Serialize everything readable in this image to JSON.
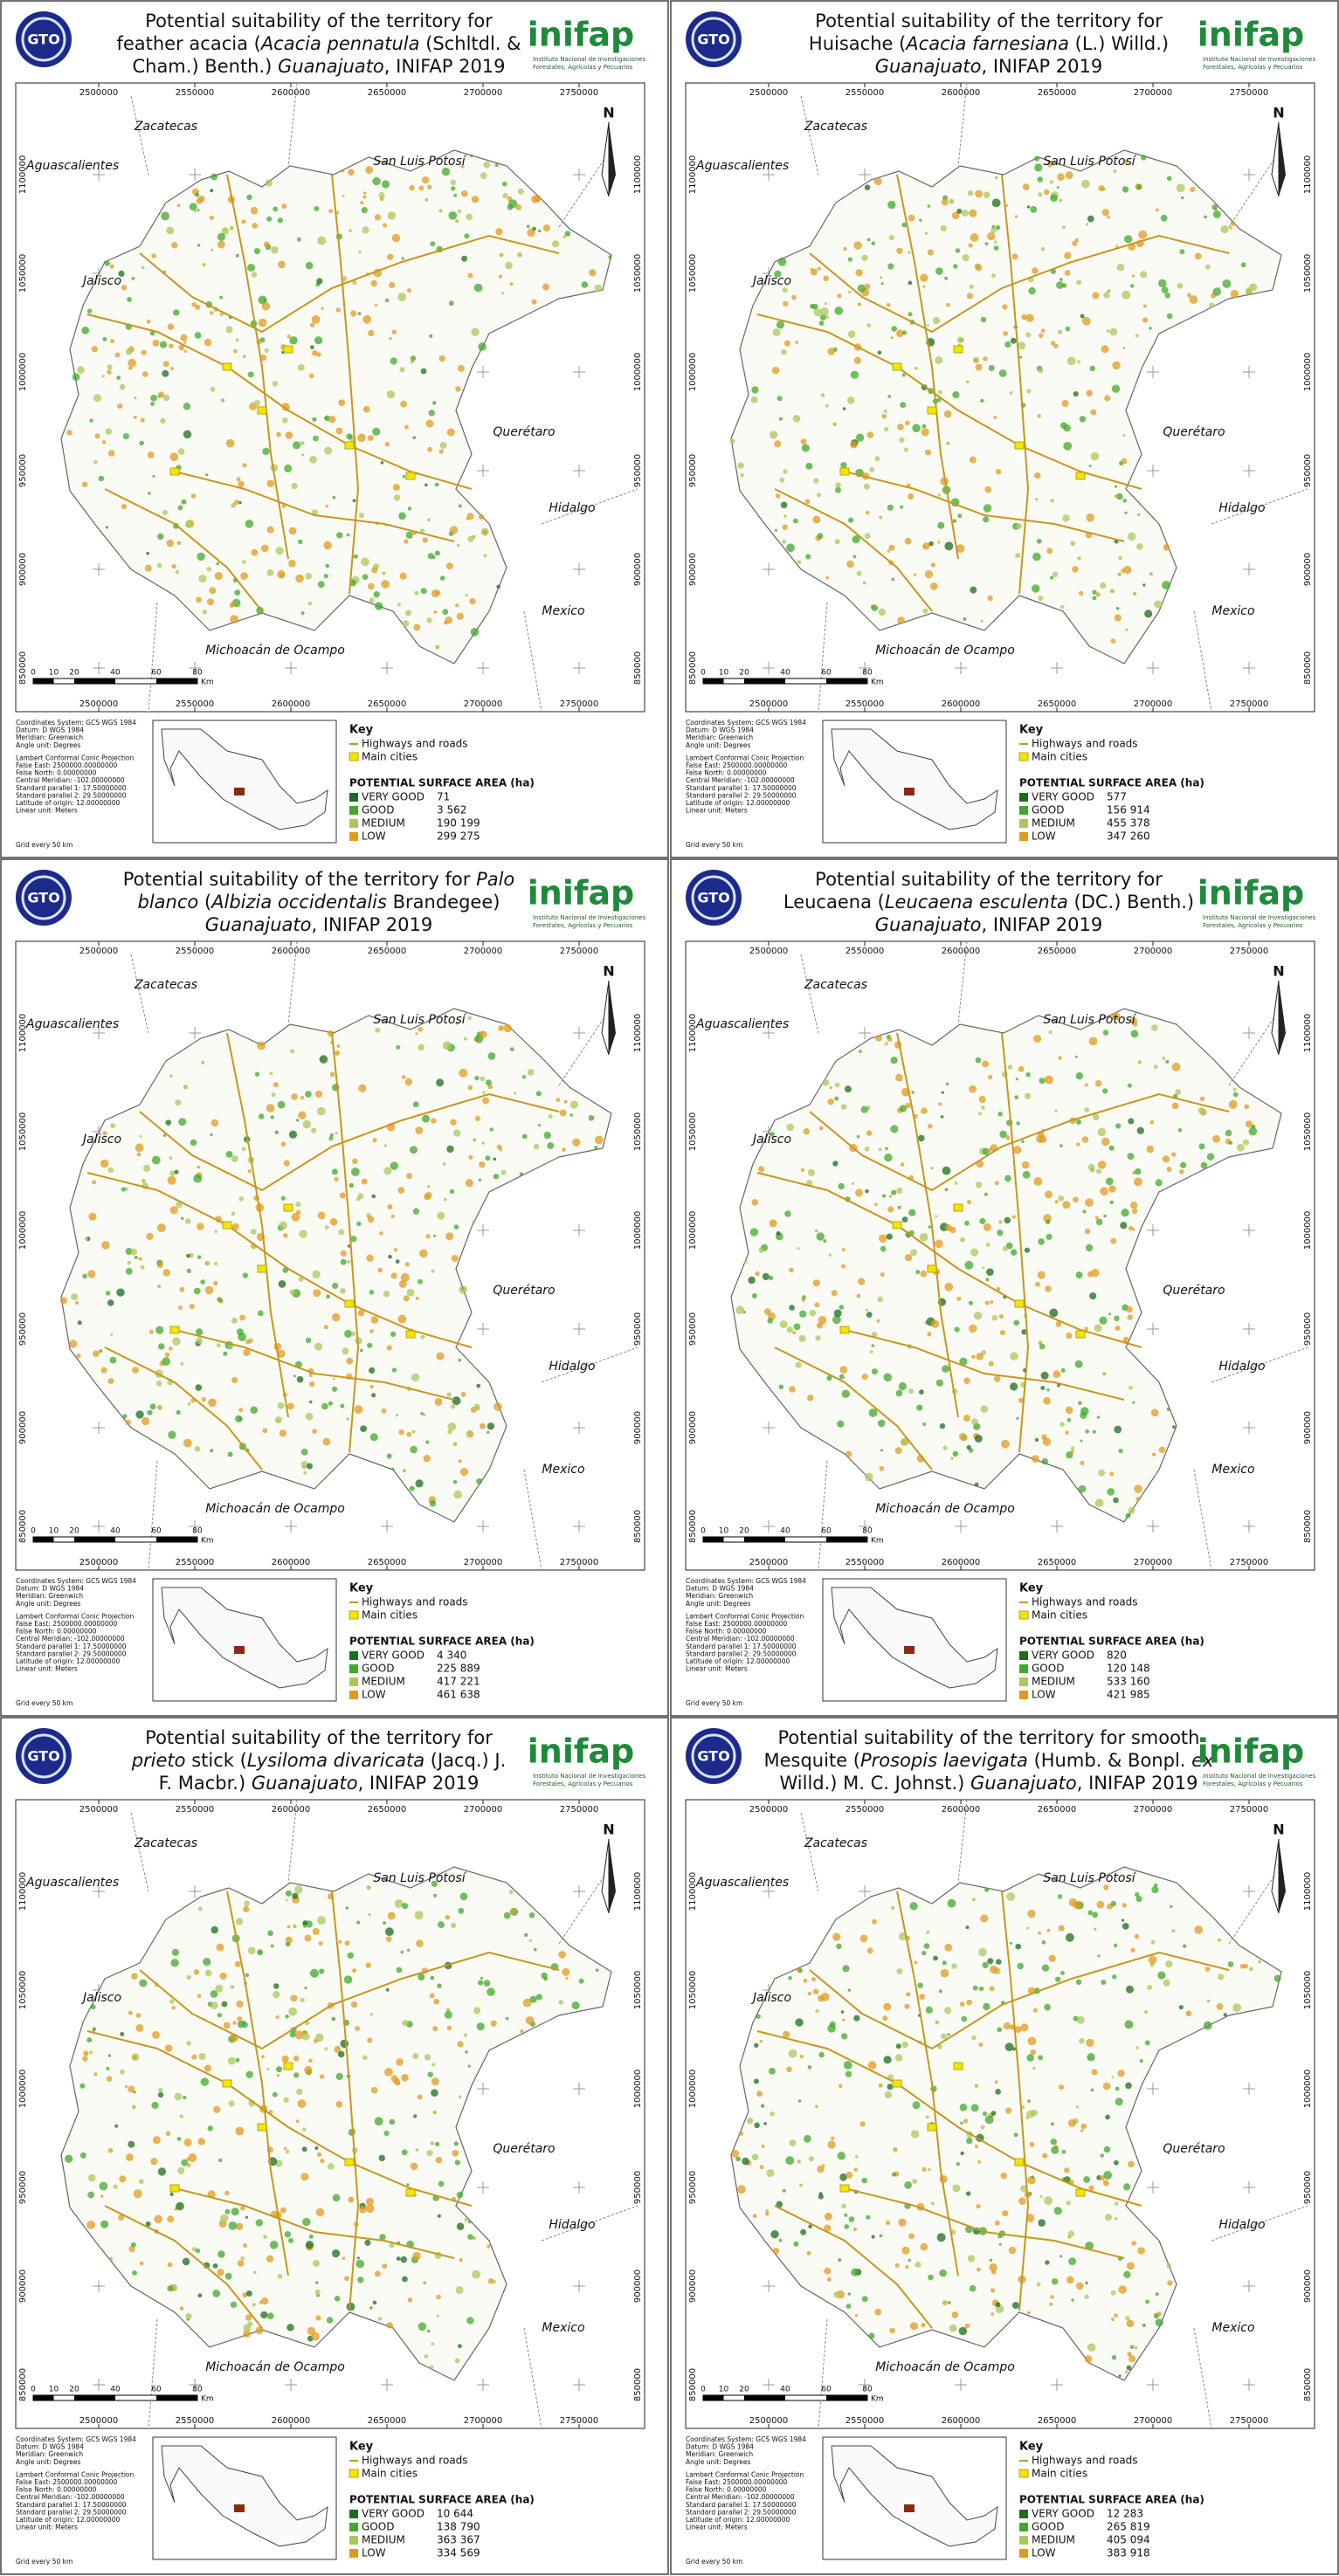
{
  "common": {
    "gto_logo": "GTO",
    "inifap_logo": "inifap",
    "inifap_caption": [
      "Instituto Nacional de Investigaciones",
      "Forestales, Agrícolas y Pecuarios"
    ],
    "xticks": [
      2500000,
      2550000,
      2600000,
      2650000,
      2700000,
      2750000
    ],
    "yticks": [
      1100000,
      1050000,
      1000000,
      950000,
      900000,
      850000
    ],
    "places": [
      "Zacatecas",
      "San Luis Potosí",
      "Aguascalientes",
      "Jalisco",
      "Querétaro",
      "Hidalgo",
      "Mexico",
      "Michoacán de Ocampo"
    ],
    "scale": [
      0,
      10,
      20,
      40,
      60,
      80
    ],
    "scale_unit": "Km",
    "north": "N",
    "projection": [
      "Coordinates System: GCS WGS 1984",
      "Datum: D WGS 1984",
      "Meridian: Greenwich",
      "Angle unit: Degrees",
      "Lambert Conformal Conic Projection",
      "False East: 2500000.00000000",
      "False North: 0.00000000",
      "Central Meridian: -102.00000000",
      "Standard parallel 1: 17.50000000",
      "Standard parallel 2: 29.50000000",
      "Latitude of origin: 12.00000000",
      "Linear unit: Meters"
    ],
    "grid_note": "Grid every 50 km",
    "key_title": "Key",
    "key_items": [
      "Highways and roads",
      "Main cities"
    ],
    "surface_title": "POTENTIAL SURFACE AREA (ha)",
    "classes": [
      {
        "label": "VERY GOOD",
        "color": "#1b6e1b"
      },
      {
        "label": "GOOD",
        "color": "#3fa92a"
      },
      {
        "label": "MEDIUM",
        "color": "#a9c85a"
      },
      {
        "label": "LOW",
        "color": "#e39a1c"
      }
    ]
  },
  "panels": [
    {
      "title": [
        [
          {
            "text": "Potential suitability of the territory for"
          }
        ],
        [
          {
            "text": "feather acacia ("
          },
          {
            "text": "Acacia pennatula",
            "italic": true
          },
          {
            "text": " (Schltdl. &"
          }
        ],
        [
          {
            "text": "Cham.) Benth.) "
          },
          {
            "text": "Guanajuato",
            "italic": true
          },
          {
            "text": ", INIFAP 2019"
          }
        ]
      ],
      "surface": [
        "71",
        "3 562",
        "190 199",
        "299 275"
      ]
    },
    {
      "title": [
        [
          {
            "text": "Potential suitability of the territory for"
          }
        ],
        [
          {
            "text": "Huisache ("
          },
          {
            "text": "Acacia farnesiana",
            "italic": true
          },
          {
            "text": " (L.) Willd.)"
          }
        ],
        [
          {
            "text": "Guanajuato",
            "italic": true
          },
          {
            "text": ", INIFAP 2019"
          }
        ]
      ],
      "surface": [
        "577",
        "156 914",
        "455 378",
        "347 260"
      ]
    },
    {
      "title": [
        [
          {
            "text": "Potential suitability of the territory for "
          },
          {
            "text": "Palo",
            "italic": true
          }
        ],
        [
          {
            "text": "blanco",
            "italic": true
          },
          {
            "text": " ("
          },
          {
            "text": "Albizia occidentalis",
            "italic": true
          },
          {
            "text": " Brandegee)"
          }
        ],
        [
          {
            "text": "Guanajuato",
            "italic": true
          },
          {
            "text": ", INIFAP 2019"
          }
        ]
      ],
      "surface": [
        "4 340",
        "225 889",
        "417 221",
        "461 638"
      ]
    },
    {
      "title": [
        [
          {
            "text": "Potential suitability of the territory for"
          }
        ],
        [
          {
            "text": "Leucaena ("
          },
          {
            "text": "Leucaena esculenta",
            "italic": true
          },
          {
            "text": " (DC.) Benth.)"
          }
        ],
        [
          {
            "text": "Guanajuato",
            "italic": true
          },
          {
            "text": ", INIFAP 2019"
          }
        ]
      ],
      "surface": [
        "820",
        "120 148",
        "533 160",
        "421 985"
      ]
    },
    {
      "title": [
        [
          {
            "text": "Potential suitability of the territory for"
          }
        ],
        [
          {
            "text": "prieto",
            "italic": true
          },
          {
            "text": " stick ("
          },
          {
            "text": "Lysiloma divaricata",
            "italic": true
          },
          {
            "text": " (Jacq.) J."
          }
        ],
        [
          {
            "text": "F. Macbr.) "
          },
          {
            "text": "Guanajuato",
            "italic": true
          },
          {
            "text": ", INIFAP 2019"
          }
        ]
      ],
      "surface": [
        "10 644",
        "138 790",
        "363 367",
        "334 569"
      ]
    },
    {
      "title": [
        [
          {
            "text": "Potential suitability of the territory for smooth"
          }
        ],
        [
          {
            "text": "Mesquite ("
          },
          {
            "text": "Prosopis laevigata",
            "italic": true
          },
          {
            "text": " (Humb. & Bonpl. "
          },
          {
            "text": "ex",
            "italic": true
          }
        ],
        [
          {
            "text": "Willd.) M. C. Johnst.) "
          },
          {
            "text": "Guanajuato",
            "italic": true
          },
          {
            "text": ", INIFAP 2019"
          }
        ]
      ],
      "surface": [
        "12 283",
        "265 819",
        "405 094",
        "383 918"
      ]
    }
  ]
}
